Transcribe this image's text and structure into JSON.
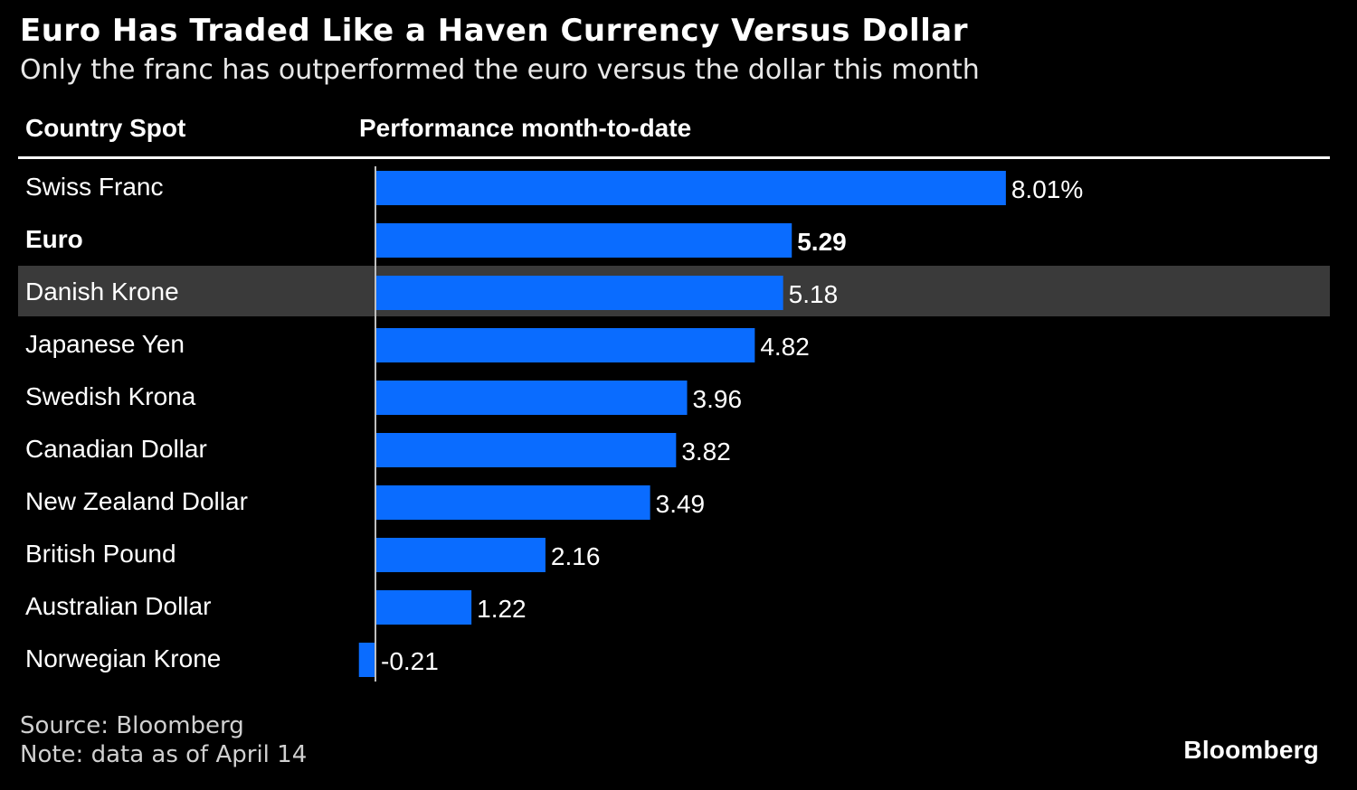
{
  "colors": {
    "background": "#000000",
    "bar": "#0a6cff",
    "highlight_row": "#3a3a3a",
    "text": "#ffffff"
  },
  "header": {
    "title": "Euro Has Traded Like a Haven Currency Versus Dollar",
    "subtitle": "Only the franc has outperformed the euro versus the dollar this month"
  },
  "columns": {
    "country": "Country Spot",
    "performance": "Performance month-to-date"
  },
  "chart_data": {
    "type": "bar",
    "orientation": "horizontal",
    "title": "Euro Has Traded Like a Haven Currency Versus Dollar",
    "subtitle": "Only the franc has outperformed the euro versus the dollar this month",
    "xlabel": "Performance month-to-date",
    "ylabel": "Country Spot",
    "categories": [
      "Swiss Franc",
      "Euro",
      "Danish Krone",
      "Japanese Yen",
      "Swedish Krona",
      "Canadian Dollar",
      "New Zealand Dollar",
      "British Pound",
      "Australian Dollar",
      "Norwegian Krone"
    ],
    "values": [
      8.01,
      5.29,
      5.18,
      4.82,
      3.96,
      3.82,
      3.49,
      2.16,
      1.22,
      -0.21
    ],
    "value_labels": [
      "8.01%",
      "5.29",
      "5.18",
      "4.82",
      "3.96",
      "3.82",
      "3.49",
      "2.16",
      "1.22",
      "-0.21"
    ],
    "highlighted": "Euro",
    "unit": "%"
  },
  "footer": {
    "source": "Source: Bloomberg",
    "note": "Note: data as of April 14",
    "logo": "Bloomberg"
  }
}
